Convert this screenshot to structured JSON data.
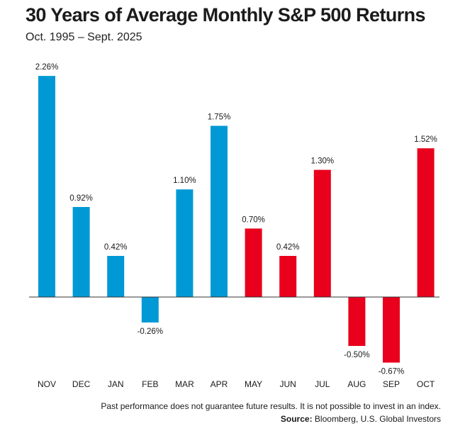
{
  "title": "30 Years of Average Monthly S&P 500 Returns",
  "subtitle": "Oct. 1995 – Sept. 2025",
  "footer": {
    "disclaimer": "Past performance does not guarantee future results. It is not possible to invest in an index.",
    "source_label": "Source:",
    "source_text": "Bloomberg, U.S. Global Investors"
  },
  "colors": {
    "blue": "#0099D5",
    "red": "#E8001C",
    "axis": "#333333"
  },
  "chart_data": {
    "type": "bar",
    "categories": [
      "NOV",
      "DEC",
      "JAN",
      "FEB",
      "MAR",
      "APR",
      "MAY",
      "JUN",
      "JUL",
      "AUG",
      "SEP",
      "OCT"
    ],
    "values": [
      2.26,
      0.92,
      0.42,
      -0.26,
      1.1,
      1.75,
      0.7,
      0.42,
      1.3,
      -0.5,
      -0.67,
      1.52
    ],
    "data_labels": [
      "2.26%",
      "0.92%",
      "0.42%",
      "-0.26%",
      "1.10%",
      "1.75%",
      "0.70%",
      "0.42%",
      "1.30%",
      "-0.50%",
      "-0.67%",
      "1.52%"
    ],
    "bar_colors": [
      "blue",
      "blue",
      "blue",
      "blue",
      "blue",
      "blue",
      "red",
      "red",
      "red",
      "red",
      "red",
      "red"
    ],
    "title": "30 Years of Average Monthly S&P 500 Returns",
    "xlabel": "",
    "ylabel": "",
    "ylim": [
      -0.67,
      2.26
    ],
    "grid": false,
    "legend": "none"
  }
}
